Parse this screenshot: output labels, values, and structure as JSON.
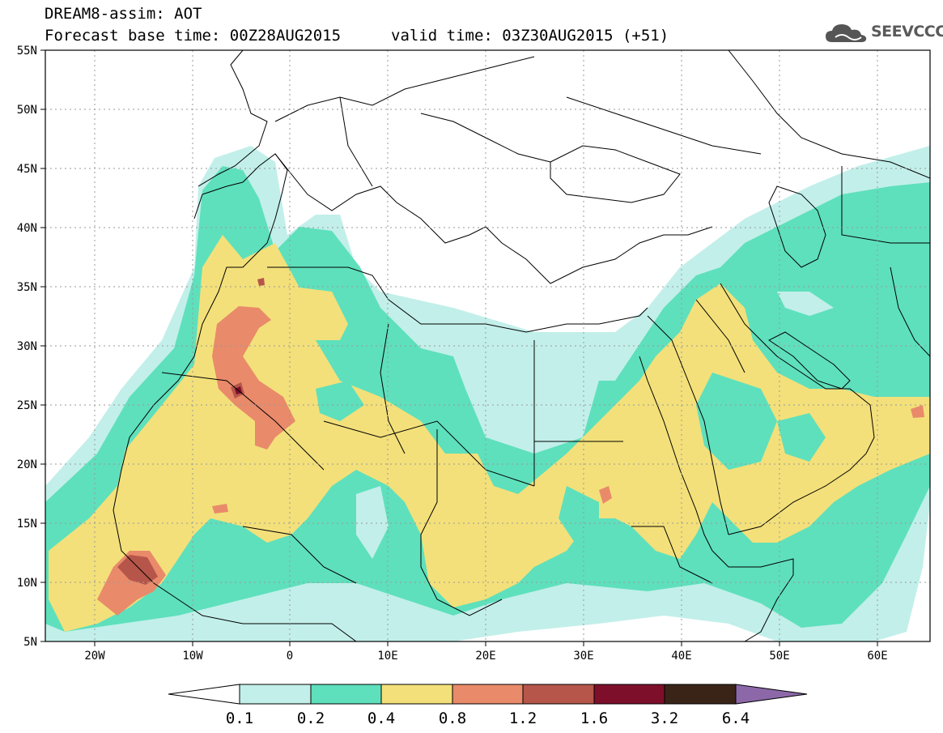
{
  "header": {
    "title": "DREAM8-assim: AOT",
    "base_time": "Forecast base time: 00Z28AUG2015",
    "valid_time": "valid time: 03Z30AUG2015 (+51)"
  },
  "logo": {
    "text": "SEEVCCC",
    "icon": "cloud-icon"
  },
  "map": {
    "lat_labels": [
      "55N",
      "50N",
      "45N",
      "40N",
      "35N",
      "30N",
      "25N",
      "20N",
      "15N",
      "10N",
      "5N"
    ],
    "lon_labels": [
      "20W",
      "10W",
      "0",
      "10E",
      "20E",
      "30E",
      "40E",
      "50E",
      "60E"
    ],
    "lat_range": [
      5,
      55
    ],
    "lon_range": [
      -25,
      65
    ],
    "grid": "dotted"
  },
  "colorbar": {
    "levels": [
      "0.1",
      "0.2",
      "0.4",
      "0.8",
      "1.2",
      "1.6",
      "3.2",
      "6.4"
    ],
    "colors": [
      "#ffffff",
      "#c2efea",
      "#5ee0bc",
      "#f3e07a",
      "#e98a6a",
      "#b6564a",
      "#7d0f2a",
      "#3a2418",
      "#8c68a8"
    ]
  }
}
